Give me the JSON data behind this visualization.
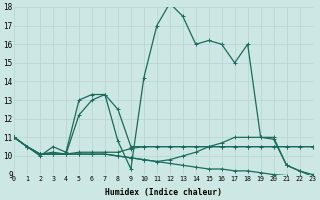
{
  "background_color": "#cde8e4",
  "grid_color": "#b8d8d4",
  "line_color": "#1a6b5a",
  "xlabel": "Humidex (Indice chaleur)",
  "xlim": [
    0,
    23
  ],
  "ylim": [
    9,
    18
  ],
  "xticks": [
    0,
    1,
    2,
    3,
    4,
    5,
    6,
    7,
    8,
    9,
    10,
    11,
    12,
    13,
    14,
    15,
    16,
    17,
    18,
    19,
    20,
    21,
    22,
    23
  ],
  "yticks": [
    9,
    10,
    11,
    12,
    13,
    14,
    15,
    16,
    17,
    18
  ],
  "series": [
    [
      11.0,
      10.5,
      10.0,
      10.5,
      10.2,
      13.0,
      13.3,
      13.3,
      12.5,
      10.5,
      10.5,
      10.5,
      10.5,
      10.5,
      10.5,
      10.5,
      10.5,
      10.5,
      10.5,
      10.5,
      10.5,
      10.5,
      10.5,
      10.5
    ],
    [
      11.0,
      10.5,
      10.1,
      10.2,
      10.1,
      10.2,
      10.2,
      10.2,
      10.2,
      10.4,
      10.5,
      10.5,
      10.5,
      10.5,
      10.5,
      10.5,
      10.5,
      10.5,
      10.5,
      10.5,
      10.5,
      10.5,
      10.5,
      10.5
    ],
    [
      11.0,
      10.5,
      10.1,
      10.1,
      10.1,
      10.1,
      10.1,
      10.1,
      10.0,
      9.9,
      9.8,
      9.7,
      9.6,
      9.5,
      9.4,
      9.3,
      9.3,
      9.2,
      9.2,
      9.1,
      9.0,
      8.95,
      8.9,
      8.85
    ],
    [
      11.0,
      10.5,
      10.1,
      10.1,
      10.1,
      10.1,
      10.1,
      10.1,
      10.0,
      9.9,
      9.8,
      9.7,
      9.8,
      10.0,
      10.2,
      10.5,
      10.7,
      11.0,
      11.0,
      11.0,
      10.9,
      9.5,
      9.2,
      9.0
    ],
    [
      11.0,
      10.5,
      10.1,
      10.1,
      10.1,
      12.2,
      13.0,
      13.3,
      10.8,
      9.3,
      14.2,
      17.0,
      18.2,
      17.5,
      16.0,
      16.2,
      16.0,
      15.0,
      16.0,
      11.0,
      11.0,
      9.5,
      9.2,
      8.9
    ]
  ]
}
